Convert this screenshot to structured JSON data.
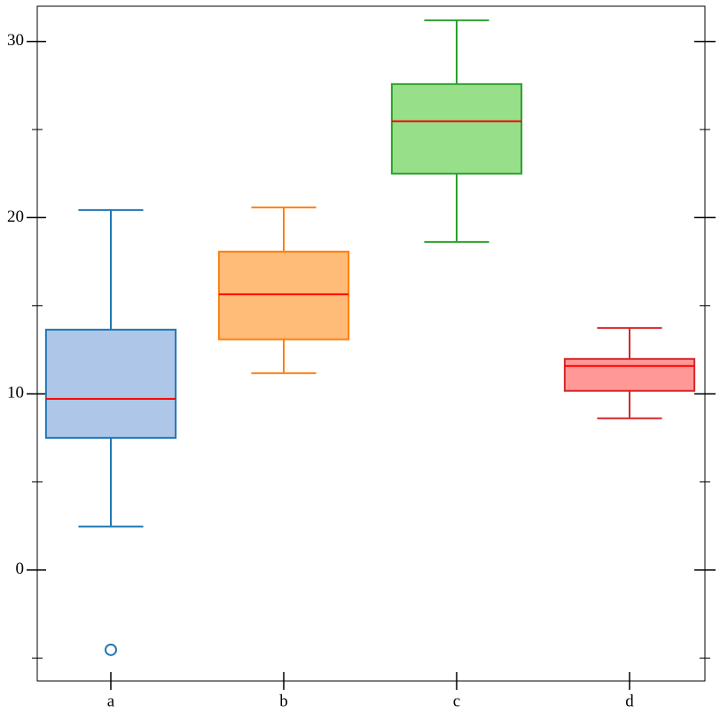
{
  "chart_data": {
    "type": "box",
    "categories": [
      "a",
      "b",
      "c",
      "d"
    ],
    "boxes": [
      {
        "whisker_low": 2.47,
        "q1": 7.5,
        "median": 9.71,
        "q3": 13.64,
        "whisker_high": 20.43,
        "outliers": [
          -4.53
        ]
      },
      {
        "whisker_low": 11.17,
        "q1": 13.09,
        "median": 15.65,
        "q3": 18.07,
        "whisker_high": 20.58,
        "outliers": []
      },
      {
        "whisker_low": 18.62,
        "q1": 22.5,
        "median": 25.47,
        "q3": 27.58,
        "whisker_high": 31.2,
        "outliers": []
      },
      {
        "whisker_low": 8.61,
        "q1": 10.17,
        "median": 11.58,
        "q3": 11.98,
        "whisker_high": 13.74,
        "outliers": []
      }
    ],
    "colors": [
      "#1f77b4",
      "#ff7f0e",
      "#2ca02c",
      "#d62728"
    ],
    "fill_colors": [
      "#aec7e8",
      "#ffbb78",
      "#98df8a",
      "#ff9896"
    ],
    "median_color": "#ff0000",
    "ylim": [
      -6.3,
      32
    ],
    "yticks": [
      0,
      10,
      20,
      30
    ],
    "minor_yticks": [
      -5,
      5,
      15,
      25
    ]
  }
}
